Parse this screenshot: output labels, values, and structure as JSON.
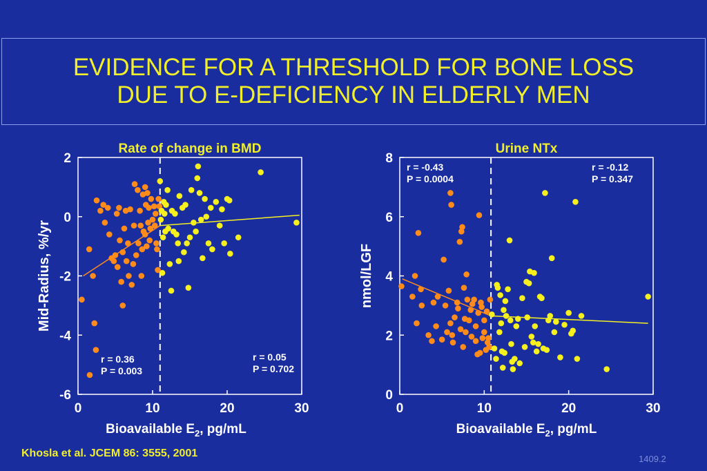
{
  "slide": {
    "title_line1": "EVIDENCE FOR A THRESHOLD FOR BONE LOSS",
    "title_line2": "DUE TO E-DEFICIENCY IN ELDERLY MEN",
    "citation": "Khosla et al.  JCEM 86: 3555, 2001",
    "slide_number": "1409.2"
  },
  "colors": {
    "background": "#1a2d9e",
    "title": "#f0ef2a",
    "low_group": "#ff8c1a",
    "high_group": "#f5f01e",
    "axis_text": "#ffffff"
  },
  "chart_data": [
    {
      "type": "scatter",
      "title": "Rate of change in BMD",
      "xlabel_main": "Bioavailable E",
      "xlabel_sub": "2",
      "xlabel_tail": ", pg/mL",
      "ylabel": "Mid-Radius, %/yr",
      "xlim": [
        0,
        30
      ],
      "ylim": [
        -6,
        2
      ],
      "xticks": [
        0,
        10,
        20,
        30
      ],
      "yticks": [
        -6,
        -4,
        -2,
        0,
        2
      ],
      "threshold_x": 11,
      "annotations": [
        {
          "text_lines": [
            "r = 0.36",
            "P = 0.003"
          ],
          "group": "low"
        },
        {
          "text_lines": [
            "r = 0.05",
            "P = 0.702"
          ],
          "group": "high"
        }
      ],
      "fits": [
        {
          "group": "low",
          "x": [
            0.7,
            11
          ],
          "y": [
            -2.0,
            -0.3
          ]
        },
        {
          "group": "high",
          "x": [
            11,
            29.7
          ],
          "y": [
            -0.3,
            0.05
          ]
        }
      ],
      "series": [
        {
          "group": "low",
          "points": [
            [
              0.5,
              -2.8
            ],
            [
              1.5,
              -1.1
            ],
            [
              2,
              -2
            ],
            [
              2.2,
              -3.6
            ],
            [
              2.4,
              -4.5
            ],
            [
              2.5,
              0.55
            ],
            [
              3,
              0.2
            ],
            [
              3.4,
              0.4
            ],
            [
              3.6,
              -0.2
            ],
            [
              4,
              0.3
            ],
            [
              4.2,
              -0.6
            ],
            [
              4.5,
              -1.4
            ],
            [
              4.8,
              -1.5
            ],
            [
              5,
              -1.3
            ],
            [
              5.2,
              0.1
            ],
            [
              5.3,
              -1.7
            ],
            [
              5.5,
              0.3
            ],
            [
              5.6,
              -0.8
            ],
            [
              5.8,
              -2.2
            ],
            [
              6,
              -3
            ],
            [
              6,
              -1.2
            ],
            [
              6.2,
              -0.4
            ],
            [
              6.4,
              0.2
            ],
            [
              6.5,
              -1.5
            ],
            [
              6.7,
              -0.9
            ],
            [
              6.8,
              -2
            ],
            [
              7,
              0.25
            ],
            [
              7.2,
              -2.3
            ],
            [
              7.4,
              -1.6
            ],
            [
              7.5,
              -0.3
            ],
            [
              7.6,
              1.1
            ],
            [
              7.8,
              -1.3
            ],
            [
              8,
              0.9
            ],
            [
              8.1,
              -0.9
            ],
            [
              8.3,
              0.2
            ],
            [
              8.4,
              -0.3
            ],
            [
              8.5,
              -2
            ],
            [
              8.6,
              -1.1
            ],
            [
              8.7,
              0.75
            ],
            [
              8.8,
              -0.5
            ],
            [
              9,
              1
            ],
            [
              9,
              -0.6
            ],
            [
              9.1,
              0.4
            ],
            [
              9.2,
              -1
            ],
            [
              9.3,
              0.8
            ],
            [
              9.4,
              -0.2
            ],
            [
              9.5,
              0.3
            ],
            [
              9.6,
              -0.8
            ],
            [
              9.7,
              -0.4
            ],
            [
              9.8,
              0.6
            ],
            [
              10,
              -0.1
            ],
            [
              10.2,
              0.35
            ],
            [
              10.3,
              -0.3
            ],
            [
              10.4,
              0.1
            ],
            [
              10.5,
              -0.9
            ],
            [
              10.6,
              -1.1
            ],
            [
              10.7,
              -1.8
            ],
            [
              10.8,
              0.6
            ],
            [
              10.9,
              0.35
            ]
          ]
        },
        {
          "group": "high",
          "points": [
            [
              11,
              1.2
            ],
            [
              11.1,
              -0.1
            ],
            [
              11.2,
              0.2
            ],
            [
              11.3,
              -1.9
            ],
            [
              11.4,
              -0.7
            ],
            [
              11.5,
              0.5
            ],
            [
              11.6,
              0.1
            ],
            [
              11.7,
              -0.5
            ],
            [
              11.8,
              0.4
            ],
            [
              12,
              0.9
            ],
            [
              12.1,
              -0.4
            ],
            [
              12.3,
              -1.6
            ],
            [
              12.5,
              -2.5
            ],
            [
              12.6,
              0.2
            ],
            [
              12.8,
              -0.5
            ],
            [
              13,
              0.1
            ],
            [
              13.2,
              -0.6
            ],
            [
              13.4,
              -0.9
            ],
            [
              13.5,
              -1.5
            ],
            [
              13.6,
              0.7
            ],
            [
              14,
              0.3
            ],
            [
              14.2,
              -1.2
            ],
            [
              14.4,
              0.4
            ],
            [
              14.6,
              -0.9
            ],
            [
              14.8,
              -2.4
            ],
            [
              15,
              -0.7
            ],
            [
              15.2,
              0.9
            ],
            [
              15.5,
              -0.2
            ],
            [
              15.8,
              -0.5
            ],
            [
              16,
              1.3
            ],
            [
              16.1,
              1.7
            ],
            [
              16.3,
              0.8
            ],
            [
              16.5,
              -0.1
            ],
            [
              16.7,
              -1.4
            ],
            [
              17,
              0.6
            ],
            [
              17.2,
              0
            ],
            [
              17.5,
              -0.9
            ],
            [
              17.8,
              0.3
            ],
            [
              18,
              -1.1
            ],
            [
              18.5,
              0.5
            ],
            [
              19,
              -0.3
            ],
            [
              19.3,
              0.25
            ],
            [
              19.6,
              -0.9
            ],
            [
              20,
              0.6
            ],
            [
              20.3,
              0.55
            ],
            [
              20.4,
              -1.25
            ],
            [
              21.5,
              -0.7
            ],
            [
              24.5,
              1.5
            ],
            [
              29.3,
              -0.2
            ]
          ]
        }
      ]
    },
    {
      "type": "scatter",
      "title": "Urine NTx",
      "xlabel_main": "Bioavailable E",
      "xlabel_sub": "2",
      "xlabel_tail": ", pg/mL",
      "ylabel": "nmol/LGF",
      "xlim": [
        0,
        30
      ],
      "ylim": [
        0,
        8
      ],
      "xticks": [
        0,
        10,
        20,
        30
      ],
      "yticks": [
        0,
        2,
        4,
        6,
        8
      ],
      "threshold_x": 10.8,
      "annotations": [
        {
          "text_lines": [
            "r = -0.43",
            "P = 0.0004"
          ],
          "group": "low"
        },
        {
          "text_lines": [
            "r = -0.12",
            "P = 0.347"
          ],
          "group": "high"
        }
      ],
      "fits": [
        {
          "group": "low",
          "x": [
            0.3,
            10.8
          ],
          "y": [
            3.9,
            2.65
          ]
        },
        {
          "group": "high",
          "x": [
            10.8,
            29.4
          ],
          "y": [
            2.65,
            2.4
          ]
        }
      ],
      "series": [
        {
          "group": "low",
          "points": [
            [
              0.2,
              3.65
            ],
            [
              1.5,
              3.3
            ],
            [
              1.8,
              4
            ],
            [
              2,
              2.4
            ],
            [
              2.2,
              5.45
            ],
            [
              2.5,
              3.55
            ],
            [
              2.6,
              3
            ],
            [
              3.4,
              2
            ],
            [
              3.8,
              1.8
            ],
            [
              4,
              3.1
            ],
            [
              4.3,
              2.3
            ],
            [
              4.5,
              3.3
            ],
            [
              5,
              1.85
            ],
            [
              5.2,
              4.55
            ],
            [
              5.4,
              3
            ],
            [
              5.6,
              2.1
            ],
            [
              5.8,
              3.5
            ],
            [
              6,
              2.4
            ],
            [
              6,
              6.8
            ],
            [
              6.1,
              6.4
            ],
            [
              6.2,
              2
            ],
            [
              6.3,
              1.75
            ],
            [
              6.5,
              2.6
            ],
            [
              6.8,
              3.1
            ],
            [
              6.9,
              2.9
            ],
            [
              7.1,
              5.15
            ],
            [
              7.2,
              2.2
            ],
            [
              7.3,
              5.5
            ],
            [
              7.4,
              5.65
            ],
            [
              7.5,
              1.6
            ],
            [
              7.6,
              3.6
            ],
            [
              7.7,
              2.55
            ],
            [
              7.8,
              2.1
            ],
            [
              7.9,
              4.05
            ],
            [
              8,
              3.2
            ],
            [
              8.2,
              2.5
            ],
            [
              8.4,
              2.85
            ],
            [
              8.5,
              1.95
            ],
            [
              8.6,
              3.05
            ],
            [
              8.8,
              3.2
            ],
            [
              9,
              1.8
            ],
            [
              9,
              2.3
            ],
            [
              9.2,
              1.35
            ],
            [
              9.3,
              2.75
            ],
            [
              9.4,
              6.05
            ],
            [
              9.5,
              1.4
            ],
            [
              9.6,
              3.1
            ],
            [
              9.7,
              2.95
            ],
            [
              9.8,
              1.9
            ],
            [
              10,
              2.1
            ],
            [
              10,
              2.5
            ],
            [
              10.2,
              1.5
            ],
            [
              10.3,
              2.8
            ],
            [
              10.4,
              1.75
            ],
            [
              10.5,
              1.9
            ],
            [
              10.6,
              1.6
            ],
            [
              10.7,
              3.2
            ]
          ]
        },
        {
          "group": "high",
          "points": [
            [
              10.9,
              2.7
            ],
            [
              11.2,
              1.55
            ],
            [
              11.4,
              1.2
            ],
            [
              11.5,
              3.7
            ],
            [
              11.6,
              3.6
            ],
            [
              11.8,
              2.1
            ],
            [
              11.9,
              3.35
            ],
            [
              12,
              2.4
            ],
            [
              12.1,
              1.45
            ],
            [
              12.2,
              0.9
            ],
            [
              12.3,
              2.85
            ],
            [
              12.4,
              1.4
            ],
            [
              12.5,
              3.15
            ],
            [
              12.6,
              2.65
            ],
            [
              12.8,
              3.55
            ],
            [
              13,
              5.2
            ],
            [
              13.1,
              2.5
            ],
            [
              13.2,
              1.7
            ],
            [
              13.3,
              1.1
            ],
            [
              13.4,
              0.85
            ],
            [
              13.6,
              1.2
            ],
            [
              13.8,
              2.3
            ],
            [
              14,
              2.55
            ],
            [
              14.2,
              1.05
            ],
            [
              14.5,
              3.25
            ],
            [
              14.8,
              1.6
            ],
            [
              15,
              3.8
            ],
            [
              15.1,
              2.6
            ],
            [
              15.3,
              3.75
            ],
            [
              15.4,
              4.15
            ],
            [
              15.6,
              1.95
            ],
            [
              15.8,
              1.75
            ],
            [
              15.9,
              4.1
            ],
            [
              16,
              2.3
            ],
            [
              16.2,
              1.45
            ],
            [
              16.4,
              1.7
            ],
            [
              16.6,
              3.3
            ],
            [
              16.8,
              3.25
            ],
            [
              17,
              1.55
            ],
            [
              17.2,
              6.8
            ],
            [
              17.4,
              1.5
            ],
            [
              17.6,
              2.5
            ],
            [
              17.8,
              2.65
            ],
            [
              18,
              4.6
            ],
            [
              18.3,
              2.1
            ],
            [
              18.5,
              2.45
            ],
            [
              19,
              1.25
            ],
            [
              19.5,
              2.35
            ],
            [
              20,
              2.75
            ],
            [
              20.3,
              2.05
            ],
            [
              20.5,
              2.15
            ],
            [
              20.8,
              6.5
            ],
            [
              21,
              1.2
            ],
            [
              21.5,
              2.65
            ],
            [
              24.5,
              0.85
            ],
            [
              29.4,
              3.3
            ]
          ]
        }
      ]
    }
  ]
}
